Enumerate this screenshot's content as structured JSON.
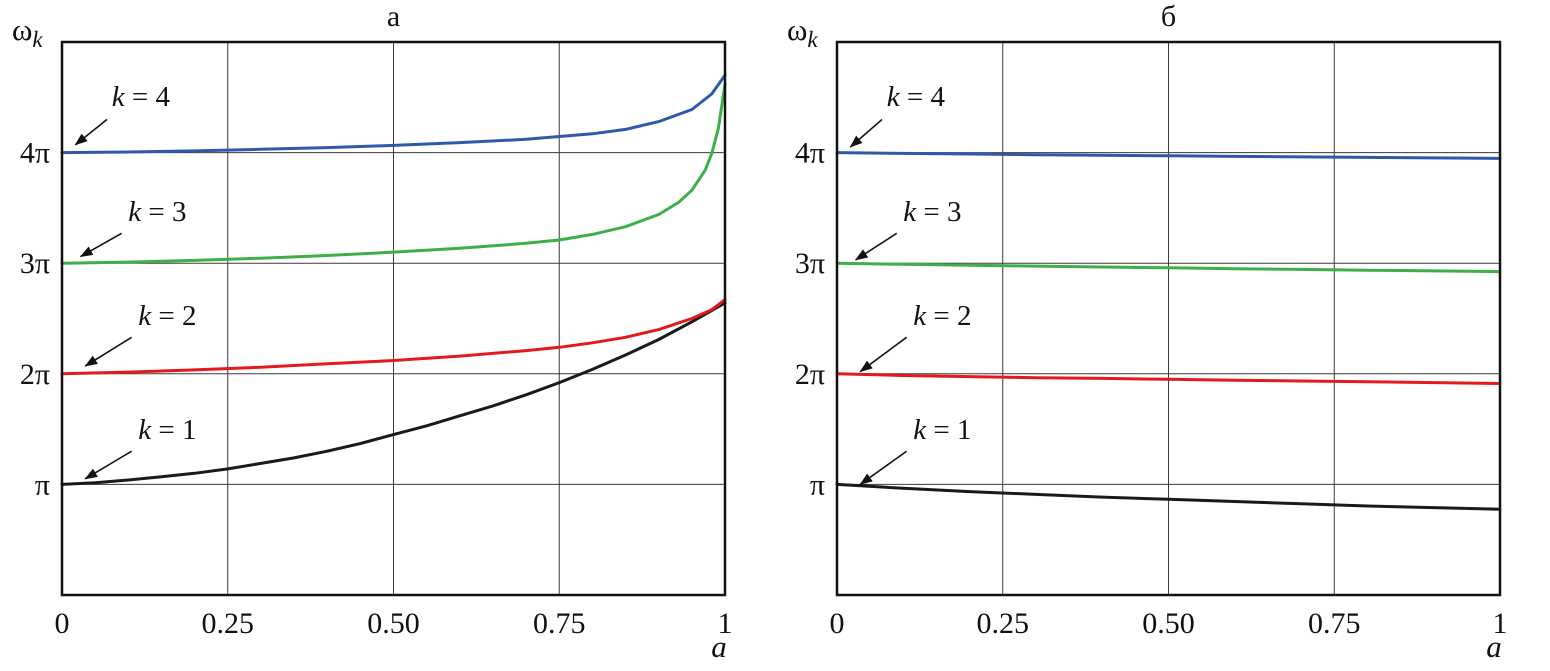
{
  "figure": {
    "background": "#ffffff",
    "grid_color": "#3a3a3a",
    "frame_color": "#111111"
  },
  "chart_data": [
    {
      "type": "line",
      "title": "а",
      "y_label": "ω",
      "y_label_sub": "k",
      "x_label": "a",
      "x_range": [
        0,
        1
      ],
      "y_range": [
        0,
        5
      ],
      "y_unit": "π",
      "grid": true,
      "legend_position": "none",
      "x_ticks": [
        {
          "v": 0,
          "label": "0"
        },
        {
          "v": 0.25,
          "label": "0.25"
        },
        {
          "v": 0.5,
          "label": "0.50"
        },
        {
          "v": 0.75,
          "label": "0.75"
        },
        {
          "v": 1,
          "label": "1"
        }
      ],
      "y_ticks": [
        {
          "v": 1,
          "label": "π"
        },
        {
          "v": 2,
          "label": "2π"
        },
        {
          "v": 3,
          "label": "3π"
        },
        {
          "v": 4,
          "label": "4π"
        }
      ],
      "series": [
        {
          "name": "k1",
          "label": "k = 1",
          "color": "#1a1a1a",
          "points": [
            [
              0,
              1.0
            ],
            [
              0.05,
              1.015
            ],
            [
              0.1,
              1.04
            ],
            [
              0.15,
              1.07
            ],
            [
              0.2,
              1.1
            ],
            [
              0.25,
              1.14
            ],
            [
              0.3,
              1.19
            ],
            [
              0.35,
              1.24
            ],
            [
              0.4,
              1.3
            ],
            [
              0.45,
              1.37
            ],
            [
              0.5,
              1.45
            ],
            [
              0.55,
              1.53
            ],
            [
              0.6,
              1.62
            ],
            [
              0.65,
              1.71
            ],
            [
              0.7,
              1.81
            ],
            [
              0.75,
              1.92
            ],
            [
              0.8,
              2.04
            ],
            [
              0.85,
              2.17
            ],
            [
              0.9,
              2.31
            ],
            [
              0.95,
              2.47
            ],
            [
              1,
              2.64
            ]
          ]
        },
        {
          "name": "k2",
          "label": "k = 2",
          "color": "#e3191d",
          "points": [
            [
              0,
              2.0
            ],
            [
              0.1,
              2.015
            ],
            [
              0.2,
              2.035
            ],
            [
              0.3,
              2.06
            ],
            [
              0.4,
              2.09
            ],
            [
              0.5,
              2.12
            ],
            [
              0.6,
              2.16
            ],
            [
              0.7,
              2.21
            ],
            [
              0.75,
              2.24
            ],
            [
              0.8,
              2.28
            ],
            [
              0.85,
              2.33
            ],
            [
              0.9,
              2.4
            ],
            [
              0.95,
              2.5
            ],
            [
              0.98,
              2.58
            ],
            [
              1,
              2.67
            ]
          ]
        },
        {
          "name": "k3",
          "label": "k = 3",
          "color": "#3daf49",
          "points": [
            [
              0,
              3.0
            ],
            [
              0.1,
              3.01
            ],
            [
              0.2,
              3.025
            ],
            [
              0.3,
              3.045
            ],
            [
              0.4,
              3.07
            ],
            [
              0.5,
              3.1
            ],
            [
              0.6,
              3.135
            ],
            [
              0.7,
              3.18
            ],
            [
              0.75,
              3.21
            ],
            [
              0.8,
              3.26
            ],
            [
              0.85,
              3.33
            ],
            [
              0.9,
              3.44
            ],
            [
              0.93,
              3.55
            ],
            [
              0.95,
              3.66
            ],
            [
              0.97,
              3.84
            ],
            [
              0.98,
              3.99
            ],
            [
              0.99,
              4.22
            ],
            [
              1,
              4.62
            ]
          ]
        },
        {
          "name": "k4",
          "label": "k = 4",
          "color": "#2d59a8",
          "points": [
            [
              0,
              4.0
            ],
            [
              0.1,
              4.005
            ],
            [
              0.2,
              4.015
            ],
            [
              0.3,
              4.03
            ],
            [
              0.4,
              4.045
            ],
            [
              0.5,
              4.065
            ],
            [
              0.6,
              4.09
            ],
            [
              0.7,
              4.12
            ],
            [
              0.8,
              4.17
            ],
            [
              0.85,
              4.21
            ],
            [
              0.9,
              4.28
            ],
            [
              0.95,
              4.39
            ],
            [
              0.98,
              4.53
            ],
            [
              1,
              4.7
            ]
          ]
        }
      ],
      "annotations": [
        {
          "var": "k",
          "value": "4",
          "text": "k = 4",
          "label_at": [
            0.075,
            4.42
          ],
          "arrow": [
            [
              0.068,
              4.3
            ],
            [
              0.02,
              4.07
            ]
          ]
        },
        {
          "var": "k",
          "value": "3",
          "text": "k = 3",
          "label_at": [
            0.1,
            3.38
          ],
          "arrow": [
            [
              0.09,
              3.27
            ],
            [
              0.028,
              3.06
            ]
          ]
        },
        {
          "var": "k",
          "value": "2",
          "text": "k = 2",
          "label_at": [
            0.115,
            2.44
          ],
          "arrow": [
            [
              0.105,
              2.33
            ],
            [
              0.035,
              2.07
            ]
          ]
        },
        {
          "var": "k",
          "value": "1",
          "text": "k = 1",
          "label_at": [
            0.115,
            1.41
          ],
          "arrow": [
            [
              0.105,
              1.3
            ],
            [
              0.035,
              1.05
            ]
          ]
        }
      ]
    },
    {
      "type": "line",
      "title": "б",
      "y_label": "ω",
      "y_label_sub": "k",
      "x_label": "a",
      "x_range": [
        0,
        1
      ],
      "y_range": [
        0,
        5
      ],
      "y_unit": "π",
      "grid": true,
      "legend_position": "none",
      "x_ticks": [
        {
          "v": 0,
          "label": "0"
        },
        {
          "v": 0.25,
          "label": "0.25"
        },
        {
          "v": 0.5,
          "label": "0.50"
        },
        {
          "v": 0.75,
          "label": "0.75"
        },
        {
          "v": 1,
          "label": "1"
        }
      ],
      "y_ticks": [
        {
          "v": 1,
          "label": "π"
        },
        {
          "v": 2,
          "label": "2π"
        },
        {
          "v": 3,
          "label": "3π"
        },
        {
          "v": 4,
          "label": "4π"
        }
      ],
      "series": [
        {
          "name": "k1",
          "label": "k = 1",
          "color": "#1a1a1a",
          "points": [
            [
              0,
              1.0
            ],
            [
              0.1,
              0.965
            ],
            [
              0.2,
              0.935
            ],
            [
              0.3,
              0.91
            ],
            [
              0.4,
              0.885
            ],
            [
              0.5,
              0.865
            ],
            [
              0.6,
              0.845
            ],
            [
              0.7,
              0.825
            ],
            [
              0.8,
              0.805
            ],
            [
              0.9,
              0.79
            ],
            [
              1,
              0.775
            ]
          ]
        },
        {
          "name": "k2",
          "label": "k = 2",
          "color": "#e3191d",
          "points": [
            [
              0,
              2.0
            ],
            [
              0.1,
              1.985
            ],
            [
              0.2,
              1.975
            ],
            [
              0.3,
              1.965
            ],
            [
              0.4,
              1.958
            ],
            [
              0.5,
              1.95
            ],
            [
              0.6,
              1.942
            ],
            [
              0.7,
              1.935
            ],
            [
              0.8,
              1.928
            ],
            [
              0.9,
              1.92
            ],
            [
              1,
              1.912
            ]
          ]
        },
        {
          "name": "k3",
          "label": "k = 3",
          "color": "#3daf49",
          "points": [
            [
              0,
              3.0
            ],
            [
              0.1,
              2.99
            ],
            [
              0.2,
              2.982
            ],
            [
              0.3,
              2.974
            ],
            [
              0.4,
              2.966
            ],
            [
              0.5,
              2.958
            ],
            [
              0.6,
              2.95
            ],
            [
              0.7,
              2.944
            ],
            [
              0.8,
              2.937
            ],
            [
              0.9,
              2.93
            ],
            [
              1,
              2.924
            ]
          ]
        },
        {
          "name": "k4",
          "label": "k = 4",
          "color": "#2d59a8",
          "points": [
            [
              0,
              4.0
            ],
            [
              0.1,
              3.993
            ],
            [
              0.2,
              3.987
            ],
            [
              0.3,
              3.981
            ],
            [
              0.4,
              3.976
            ],
            [
              0.5,
              3.971
            ],
            [
              0.6,
              3.966
            ],
            [
              0.7,
              3.961
            ],
            [
              0.8,
              3.957
            ],
            [
              0.9,
              3.952
            ],
            [
              1,
              3.948
            ]
          ]
        }
      ],
      "annotations": [
        {
          "var": "k",
          "value": "4",
          "text": "k = 4",
          "label_at": [
            0.075,
            4.42
          ],
          "arrow": [
            [
              0.068,
              4.3
            ],
            [
              0.02,
              4.05
            ]
          ]
        },
        {
          "var": "k",
          "value": "3",
          "text": "k = 3",
          "label_at": [
            0.1,
            3.38
          ],
          "arrow": [
            [
              0.09,
              3.27
            ],
            [
              0.028,
              3.03
            ]
          ]
        },
        {
          "var": "k",
          "value": "2",
          "text": "k = 2",
          "label_at": [
            0.115,
            2.44
          ],
          "arrow": [
            [
              0.105,
              2.33
            ],
            [
              0.035,
              2.02
            ]
          ]
        },
        {
          "var": "k",
          "value": "1",
          "text": "k = 1",
          "label_at": [
            0.115,
            1.41
          ],
          "arrow": [
            [
              0.105,
              1.3
            ],
            [
              0.035,
              1.0
            ]
          ]
        }
      ]
    }
  ]
}
